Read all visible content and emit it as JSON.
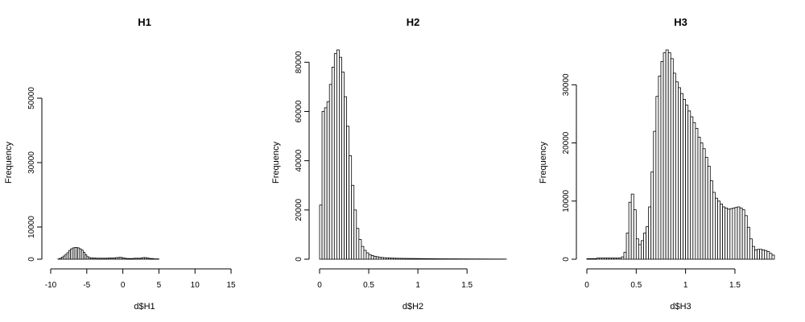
{
  "chart_data": [
    {
      "type": "bar",
      "title": "H1",
      "xlabel": "d$H1",
      "ylabel": "Frequency",
      "xlim": [
        -10,
        16
      ],
      "ylim": [
        0,
        65000
      ],
      "xticks": [
        -10,
        -5,
        0,
        5,
        10,
        15
      ],
      "yticks": [
        0,
        10000,
        30000,
        50000
      ],
      "bin_width": 0.25,
      "bin_start": -10,
      "values": [
        0,
        0,
        0,
        0,
        100,
        300,
        600,
        1000,
        1500,
        2000,
        2700,
        3200,
        3500,
        3600,
        3600,
        3500,
        3200,
        2800,
        2100,
        1400,
        800,
        500,
        400,
        400,
        400,
        300,
        300,
        300,
        300,
        300,
        300,
        300,
        400,
        400,
        400,
        400,
        500,
        500,
        600,
        500,
        400,
        300,
        200,
        200,
        200,
        200,
        300,
        300,
        300,
        300,
        400,
        500,
        500,
        400,
        300,
        200,
        200,
        100,
        100,
        100,
        0,
        0,
        0,
        0,
        0,
        0,
        0,
        0,
        0,
        0,
        0,
        0,
        0,
        0,
        0,
        0,
        0,
        0,
        0,
        0,
        0,
        0,
        0,
        0,
        0,
        0,
        0,
        0,
        0,
        0,
        0,
        0,
        0,
        0,
        0,
        0,
        0,
        0,
        0,
        0,
        0,
        0,
        0,
        0,
        0,
        0,
        0,
        0,
        0,
        0,
        0,
        0,
        0,
        0,
        0,
        0,
        0,
        0,
        0,
        0,
        0,
        0,
        0,
        0,
        0,
        0,
        0,
        0,
        0,
        0,
        0,
        0,
        0,
        0,
        0,
        0,
        0,
        0,
        0,
        0,
        0,
        0,
        0,
        0,
        0,
        0,
        0,
        0,
        0,
        0,
        0,
        0,
        0,
        0,
        0,
        0,
        0,
        0,
        0,
        0,
        0,
        0,
        0,
        0,
        0,
        0,
        0,
        0,
        0,
        0,
        0,
        0,
        0,
        0,
        0,
        0,
        0,
        0,
        0,
        0,
        0,
        0,
        0,
        0,
        0,
        0,
        0,
        0,
        0,
        0,
        0,
        0,
        0,
        0,
        0,
        0,
        0,
        0,
        0,
        0,
        0,
        0,
        0,
        0,
        0,
        0,
        0,
        0,
        0,
        0,
        0,
        0,
        0,
        0,
        0,
        0,
        0,
        0,
        0,
        0,
        0,
        0,
        0,
        0,
        0,
        0,
        0,
        0,
        0,
        0,
        0,
        0,
        0,
        0,
        0,
        0,
        0,
        0,
        0,
        0,
        0,
        0,
        0,
        0,
        0,
        0,
        0,
        0,
        0,
        0,
        0,
        0,
        0,
        0,
        0,
        0,
        0,
        0,
        0,
        0,
        0,
        0,
        0,
        0,
        0,
        0,
        0,
        0,
        0,
        0,
        0
      ]
    },
    {
      "type": "bar",
      "title": "H2",
      "xlabel": "d$H2",
      "ylabel": "Frequency",
      "xlim": [
        0,
        1.9
      ],
      "ylim": [
        0,
        85000
      ],
      "xticks": [
        0.0,
        0.5,
        1.0,
        1.5
      ],
      "yticks": [
        0,
        20000,
        40000,
        60000,
        80000
      ],
      "bin_width": 0.025,
      "bin_start": 0,
      "values": [
        22000,
        60000,
        61500,
        64000,
        71000,
        78000,
        83500,
        85000,
        82000,
        76000,
        66000,
        54000,
        42000,
        30000,
        20000,
        12500,
        8000,
        5200,
        3600,
        2600,
        1900,
        1500,
        1200,
        1000,
        800,
        700,
        600,
        550,
        500,
        450,
        400,
        380,
        360,
        340,
        320,
        300,
        290,
        280,
        270,
        260,
        250,
        240,
        230,
        220,
        210,
        200,
        190,
        180,
        170,
        160,
        150,
        150,
        140,
        140,
        130,
        130,
        120,
        120,
        110,
        110,
        100,
        100,
        100,
        90,
        90,
        90,
        80,
        80,
        80,
        70,
        70,
        70,
        60,
        60,
        60,
        50
      ]
    },
    {
      "type": "bar",
      "title": "H3",
      "xlabel": "d$H3",
      "ylabel": "Frequency",
      "xlim": [
        0,
        1.9
      ],
      "ylim": [
        0,
        36000
      ],
      "xticks": [
        0.0,
        0.5,
        1.0,
        1.5
      ],
      "yticks": [
        0,
        10000,
        20000,
        30000
      ],
      "bin_width": 0.025,
      "bin_start": 0,
      "values": [
        100,
        100,
        100,
        100,
        200,
        200,
        200,
        200,
        200,
        200,
        200,
        200,
        200,
        200,
        400,
        1200,
        4500,
        9800,
        11200,
        8500,
        3500,
        2500,
        3200,
        4500,
        5600,
        9000,
        15000,
        22000,
        28000,
        31500,
        34000,
        35500,
        36000,
        35500,
        34500,
        32000,
        30500,
        29500,
        28500,
        27500,
        26500,
        25500,
        24500,
        23500,
        22500,
        21000,
        20000,
        19000,
        17500,
        16000,
        13500,
        11500,
        10500,
        10000,
        9500,
        9000,
        8800,
        8600,
        8700,
        8800,
        8900,
        9000,
        8800,
        8500,
        7500,
        5500,
        3500,
        2200,
        1600,
        1700,
        1700,
        1600,
        1500,
        1300,
        1000,
        700
      ]
    }
  ]
}
